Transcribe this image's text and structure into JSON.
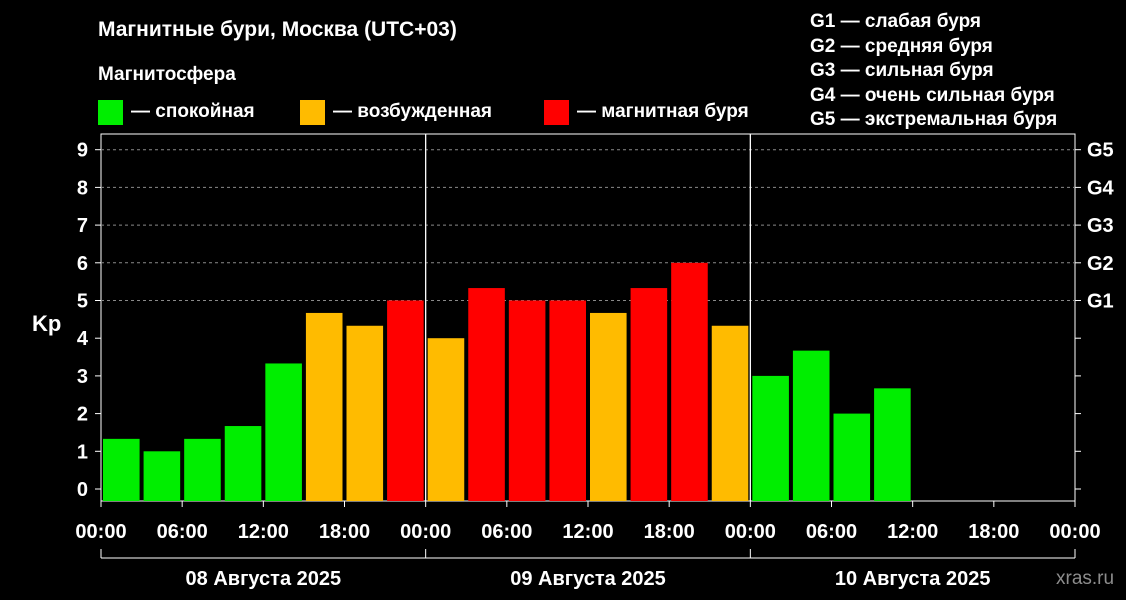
{
  "title": "Магнитные бури, Москва (UTC+03)",
  "subtitle": "Магнитосфера",
  "legend": [
    {
      "label": "— спокойная",
      "color": "#00ee00"
    },
    {
      "label": "— возбужденная",
      "color": "#ffbb00"
    },
    {
      "label": "— магнитная буря",
      "color": "#ff0000"
    }
  ],
  "g_scale": [
    "G1 — слабая буря",
    "G2 — средняя буря",
    "G3 — сильная буря",
    "G4 — очень сильная буря",
    "G5 — экстремальная буря"
  ],
  "watermark": "xras.ru",
  "chart_data": {
    "type": "bar",
    "ylabel": "Kp",
    "ylim": [
      0,
      9
    ],
    "y_ticks": [
      "0",
      "1",
      "2",
      "3",
      "4",
      "5",
      "6",
      "7",
      "8",
      "9"
    ],
    "right_ticks": [
      {
        "label": "G1",
        "value": 5
      },
      {
        "label": "G2",
        "value": 6
      },
      {
        "label": "G3",
        "value": 7
      },
      {
        "label": "G4",
        "value": 8
      },
      {
        "label": "G5",
        "value": 9
      }
    ],
    "x_tick_labels": [
      "00:00",
      "06:00",
      "12:00",
      "18:00",
      "00:00",
      "06:00",
      "12:00",
      "18:00",
      "00:00",
      "06:00",
      "12:00",
      "18:00",
      "00:00"
    ],
    "days": [
      "08 Августа 2025",
      "09 Августа 2025",
      "10 Августа 2025"
    ],
    "interval_hours": 3,
    "values": [
      1.33,
      1.0,
      1.33,
      1.67,
      3.33,
      4.67,
      4.33,
      5.0,
      4.0,
      5.33,
      5.0,
      5.0,
      4.67,
      5.33,
      6.0,
      4.33,
      3.0,
      3.67,
      2.0,
      2.67
    ],
    "colors": {
      "quiet": "#00ee00",
      "active": "#ffbb00",
      "storm": "#ff0000"
    },
    "grid": "dashed horizontal at G levels"
  }
}
